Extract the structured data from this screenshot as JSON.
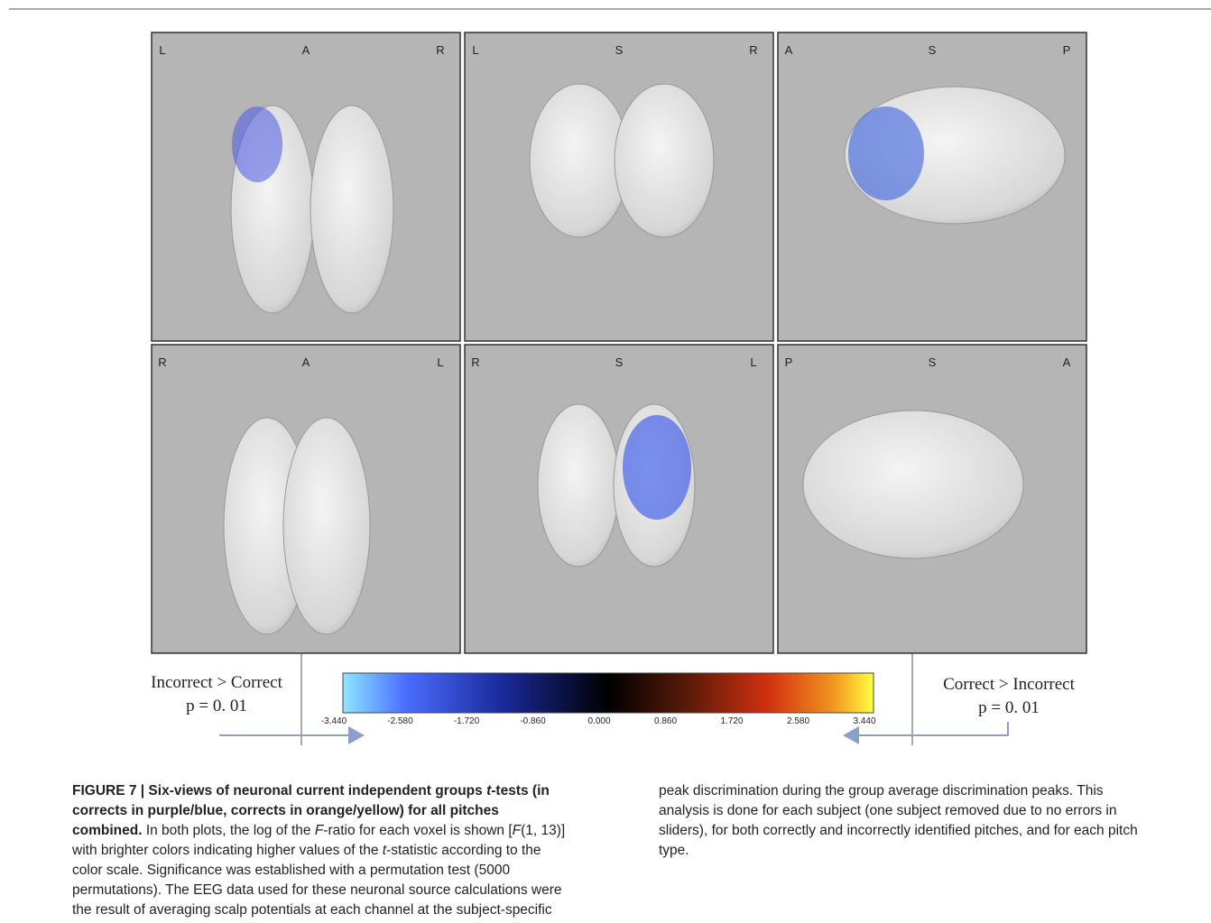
{
  "figure": {
    "panels": [
      {
        "labels": [
          "L",
          "A",
          "R"
        ]
      },
      {
        "labels": [
          "L",
          "S",
          "R"
        ]
      },
      {
        "labels": [
          "A",
          "S",
          "P"
        ]
      },
      {
        "labels": [
          "R",
          "A",
          "L"
        ]
      },
      {
        "labels": [
          "R",
          "S",
          "L"
        ]
      },
      {
        "labels": [
          "P",
          "S",
          "A"
        ]
      }
    ],
    "left_label": [
      "Incorrect > Correct",
      "p = 0. 01"
    ],
    "right_label": [
      "Correct > Incorrect",
      "p = 0. 01"
    ],
    "colorbar_ticks": [
      "-3.440",
      "-2.580",
      "-1.720",
      "-0.860",
      "0.000",
      "0.860",
      "1.720",
      "2.580",
      "3.440"
    ]
  },
  "caption": {
    "heading": [
      "FIGURE 7 | Six-views of neuronal current independent groups ",
      "t",
      "-tests (in corrects in purple/blue, corrects in orange/yellow) for all pitches combined."
    ],
    "body": [
      " In both plots, the log of the ",
      "F",
      "-ratio for each voxel is shown [",
      "F",
      "(1, 13)] with brighter colors indicating higher values of the ",
      "t",
      "-statistic according to the color scale. Significance was established with a permutation test (5000 permutations). The EEG data used for these neuronal source calculations were the result of averaging scalp potentials at each channel at the subject-specific peak discrimination during the group average discrimination peaks. This analysis is done for each subject (one subject removed due to no errors in sliders), for both correctly and incorrectly identified pitches, and for each pitch type."
    ]
  }
}
